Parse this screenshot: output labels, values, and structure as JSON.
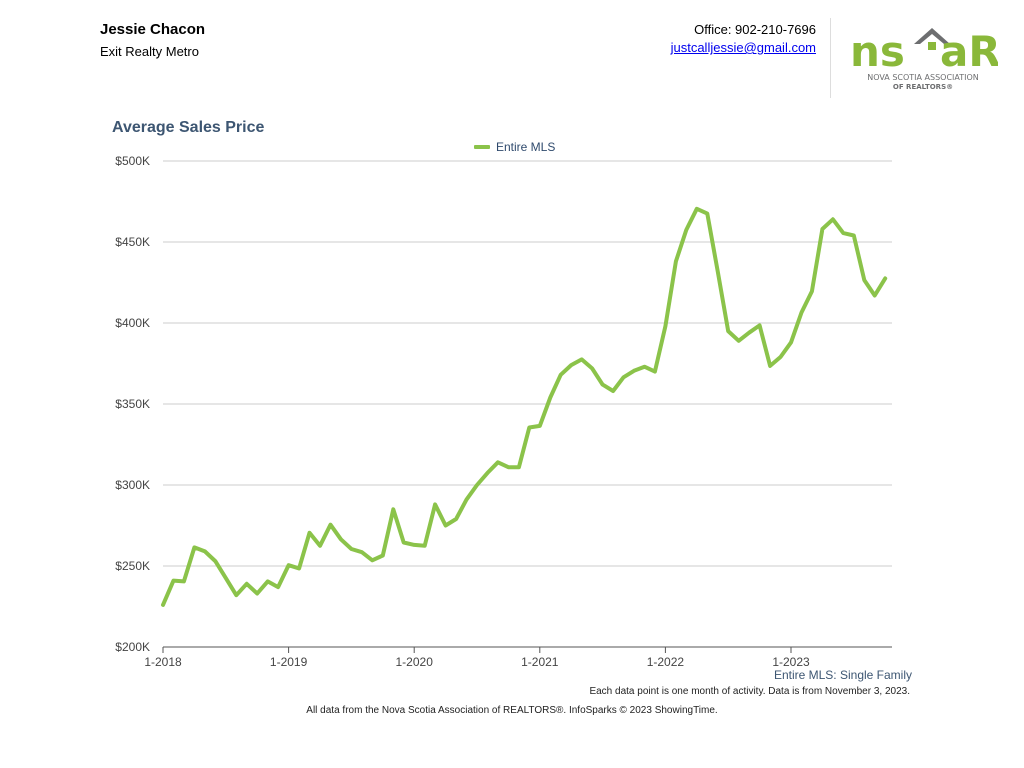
{
  "header": {
    "agent_name": "Jessie Chacon",
    "company": "Exit Realty Metro",
    "office": "Office: 902-210-7696",
    "email": "justcalljessie@gmail.com"
  },
  "logo": {
    "mark_left": "ns",
    "mark_right": "aR",
    "line1": "NOVA SCOTIA ASSOCIATION",
    "line2": "OF REALTORS®",
    "green": "#8ab83a",
    "gray": "#6d6e70"
  },
  "chart_data": {
    "type": "line",
    "title": "Average Sales Price",
    "series": [
      {
        "name": "Entire MLS",
        "color": "#8bc34a",
        "values": [
          226000,
          241000,
          240500,
          261500,
          259000,
          253000,
          242500,
          232000,
          239000,
          233000,
          240500,
          237000,
          250500,
          248500,
          270500,
          262500,
          275500,
          266500,
          260500,
          258500,
          253500,
          256500,
          285000,
          264500,
          263000,
          262500,
          288000,
          275000,
          279000,
          291000,
          300000,
          307500,
          314000,
          311000,
          311000,
          335500,
          336500,
          354000,
          368000,
          374000,
          377500,
          372000,
          362000,
          358000,
          366500,
          370500,
          373000,
          370000,
          398000,
          438000,
          457500,
          470500,
          467500,
          432000,
          395000,
          389000,
          394000,
          398500,
          373500,
          379000,
          388000,
          406500,
          419500,
          458000,
          464000,
          455500,
          454000,
          426500,
          417000,
          427500
        ]
      }
    ],
    "x_start": "2018-01",
    "x_tick_labels": [
      "1-2018",
      "1-2019",
      "1-2020",
      "1-2021",
      "1-2022",
      "1-2023"
    ],
    "y_tick_labels": [
      "$200K",
      "$250K",
      "$300K",
      "$350K",
      "$400K",
      "$450K",
      "$500K"
    ],
    "ylim": [
      200000,
      500000
    ],
    "y_ticks": [
      200000,
      250000,
      300000,
      350000,
      400000,
      450000,
      500000
    ],
    "grid": true,
    "legend_position": "top-center"
  },
  "footer": {
    "series_label": "Entire MLS: Single Family",
    "note": "Each data point is one month of activity. Data is from November 3, 2023.",
    "source": "All data from the Nova Scotia Association of REALTORS®. InfoSparks © 2023 ShowingTime."
  }
}
